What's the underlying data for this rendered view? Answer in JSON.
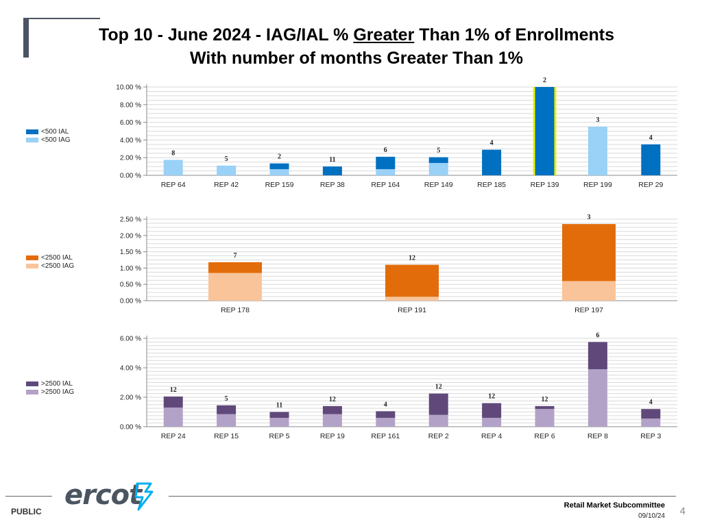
{
  "slide": {
    "title_part1": "Top 10 - June 2024 - IAG/IAL % ",
    "title_underlined": "Greater",
    "title_part2": " Than 1% of Enrollments",
    "title_line2": "With number of months Greater Than 1%",
    "footer_public": "PUBLIC",
    "footer_committee": "Retail Market Subcommittee",
    "footer_date": "09/10/24",
    "page_number": "4",
    "logo_text": "ercot"
  },
  "colors": {
    "chart1_ial": "#0070c0",
    "chart1_iag": "#99d1f7",
    "chart2_ial": "#e36c0a",
    "chart2_iag": "#f9c49a",
    "chart3_ial": "#60497a",
    "chart3_iag": "#b3a2c7",
    "highlight": "#f0f000"
  },
  "chart_data": [
    {
      "type": "bar",
      "stacked": true,
      "title": "",
      "xlabel": "",
      "ylabel": "",
      "ylim": [
        0,
        10
      ],
      "yticks": [
        "0.00 %",
        "2.00 %",
        "4.00 %",
        "6.00 %",
        "8.00 %",
        "10.00 %"
      ],
      "categories": [
        "REP 64",
        "REP 42",
        "REP 159",
        "REP 38",
        "REP 164",
        "REP 149",
        "REP 185",
        "REP 139",
        "REP 199",
        "REP 29"
      ],
      "month_counts": [
        "8",
        "5",
        "2",
        "11",
        "6",
        "5",
        "4",
        "2",
        "3",
        "4"
      ],
      "series": [
        {
          "name": "<500 IAG",
          "values": [
            1.75,
            1.1,
            0.7,
            0,
            0.7,
            1.4,
            0,
            0,
            5.5,
            0
          ]
        },
        {
          "name": "<500 IAL",
          "values": [
            0,
            0,
            0.65,
            1.0,
            1.4,
            0.65,
            2.9,
            10.0,
            0,
            3.5
          ]
        }
      ],
      "legend": [
        "<500 IAL",
        "<500 IAG"
      ],
      "legend_position": "left"
    },
    {
      "type": "bar",
      "stacked": true,
      "title": "",
      "xlabel": "",
      "ylabel": "",
      "ylim": [
        0,
        2.5
      ],
      "yticks": [
        "0.00 %",
        "0.50 %",
        "1.00 %",
        "1.50 %",
        "2.00 %",
        "2.50 %"
      ],
      "categories": [
        "REP 178",
        "REP 191",
        "REP 197"
      ],
      "month_counts": [
        "7",
        "12",
        "3"
      ],
      "series": [
        {
          "name": "<2500 IAG",
          "values": [
            0.85,
            0.12,
            0.6
          ]
        },
        {
          "name": "<2500 IAL",
          "values": [
            0.33,
            0.98,
            1.75
          ]
        }
      ],
      "legend": [
        "<2500 IAL",
        "<2500 IAG"
      ],
      "legend_position": "left"
    },
    {
      "type": "bar",
      "stacked": true,
      "title": "",
      "xlabel": "",
      "ylabel": "",
      "ylim": [
        0,
        6
      ],
      "yticks": [
        "0.00 %",
        "2.00 %",
        "4.00 %",
        "6.00 %"
      ],
      "categories": [
        "REP 24",
        "REP 15",
        "REP 5",
        "REP 19",
        "REP 161",
        "REP 2",
        "REP 4",
        "REP 6",
        "REP 8",
        "REP 3"
      ],
      "month_counts": [
        "12",
        "5",
        "11",
        "12",
        "4",
        "12",
        "12",
        "12",
        "6",
        "4"
      ],
      "series": [
        {
          "name": ">2500 IAG",
          "values": [
            1.3,
            0.85,
            0.6,
            0.85,
            0.6,
            0.8,
            0.6,
            1.2,
            3.9,
            0.55
          ]
        },
        {
          "name": ">2500 IAL",
          "values": [
            0.75,
            0.6,
            0.4,
            0.55,
            0.45,
            1.45,
            1.0,
            0.2,
            1.85,
            0.65
          ]
        }
      ],
      "legend": [
        ">2500 IAL",
        ">2500 IAG"
      ],
      "legend_position": "left"
    }
  ]
}
